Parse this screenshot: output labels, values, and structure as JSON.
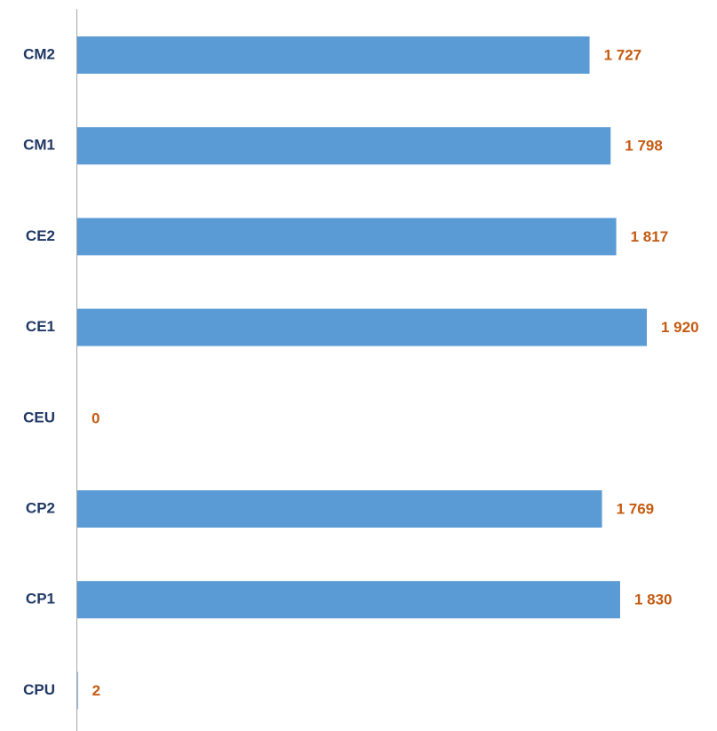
{
  "chart_data": {
    "type": "bar",
    "orientation": "horizontal",
    "categories": [
      "CM2",
      "CM1",
      "CE2",
      "CE1",
      "CEU",
      "CP2",
      "CP1",
      "CPU"
    ],
    "values": [
      1727,
      1798,
      1817,
      1920,
      0,
      1769,
      1830,
      2
    ],
    "value_labels": [
      "1 727",
      "1 798",
      "1 817",
      "1 920",
      "0",
      "1 769",
      "1 830",
      "2"
    ],
    "color": "#5b9bd5",
    "label_color": "#c55a11",
    "grid": false
  }
}
